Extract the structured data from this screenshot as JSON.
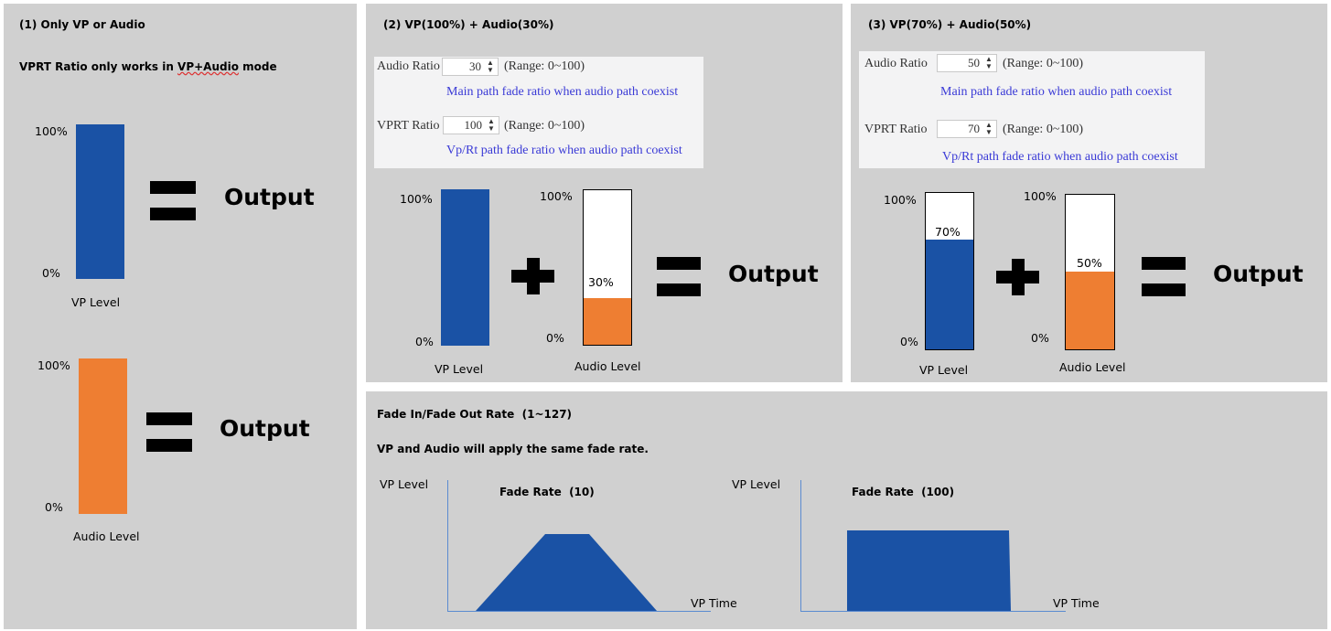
{
  "panel1": {
    "title": "(1) Only VP or Audio",
    "note_prefix": "VPRT Ratio only works in ",
    "note_emph": "VP+Audio",
    "note_suffix": " mode",
    "vp_top": "100%",
    "vp_bottom": "0%",
    "vp_label": "VP Level",
    "vp_output": "Output",
    "audio_top": "100%",
    "audio_bottom": "0%",
    "audio_label": "Audio Level",
    "audio_output": "Output"
  },
  "panel2": {
    "title": "(2) VP(100%) + Audio(30%)",
    "settings": {
      "audio_ratio_label": "Audio Ratio",
      "audio_ratio_value": "30",
      "audio_range": "(Range: 0~100)",
      "audio_desc": "Main path fade ratio when audio path coexist",
      "vprt_ratio_label": "VPRT Ratio",
      "vprt_ratio_value": "100",
      "vprt_range": "(Range: 0~100)",
      "vprt_desc": "Vp/Rt path fade ratio when audio path coexist"
    },
    "vp_top": "100%",
    "vp_bottom": "0%",
    "vp_label": "VP Level",
    "vp_level": 1.0,
    "audio_top": "100%",
    "audio_bottom": "0%",
    "audio_pct": "30%",
    "audio_label": "Audio Level",
    "audio_level": 0.3,
    "output": "Output"
  },
  "panel3": {
    "title": "(3) VP(70%) + Audio(50%)",
    "settings": {
      "audio_ratio_label": "Audio Ratio",
      "audio_ratio_value": "50",
      "audio_range": "(Range: 0~100)",
      "audio_desc": "Main path fade ratio when audio path coexist",
      "vprt_ratio_label": "VPRT Ratio",
      "vprt_ratio_value": "70",
      "vprt_range": "(Range: 0~100)",
      "vprt_desc": "Vp/Rt path fade ratio when audio path coexist"
    },
    "vp_top": "100%",
    "vp_bottom": "0%",
    "vp_pct": "70%",
    "vp_label": "VP Level",
    "vp_level": 0.7,
    "audio_top": "100%",
    "audio_bottom": "0%",
    "audio_pct": "50%",
    "audio_label": "Audio Level",
    "audio_level": 0.5,
    "output": "Output"
  },
  "panel4": {
    "title": "Fade In/Fade Out Rate  (1~127)",
    "note": "VP and Audio will apply the same fade rate.",
    "graph1": {
      "ylabel": "VP Level",
      "xlabel": "VP Time",
      "caption": "Fade Rate  (10)"
    },
    "graph2": {
      "ylabel": "VP Level",
      "xlabel": "VP Time",
      "caption": "Fade Rate  (100)"
    }
  },
  "colors": {
    "vp": "#1a52a5",
    "audio": "#ee7e32",
    "panel": "#d0d0d0",
    "description": "#3a3ad6"
  },
  "icons": [
    "plus-icon",
    "equals-icon",
    "spinner-arrows-icon"
  ]
}
